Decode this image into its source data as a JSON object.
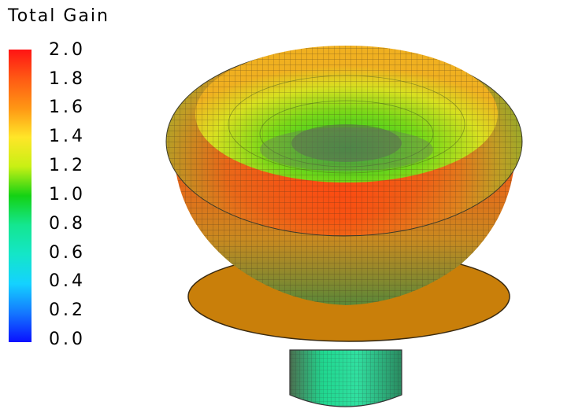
{
  "legend": {
    "title": "Total Gain",
    "ticks": [
      "2.0",
      "1.8",
      "1.6",
      "1.4",
      "1.2",
      "1.0",
      "0.8",
      "0.6",
      "0.4",
      "0.2",
      "0.0"
    ]
  },
  "colors": {
    "ground_plane": "#c97f0a",
    "gain_high": "#ff3c10",
    "gain_mid": "#b8f018",
    "gain_low": "#20d880"
  }
}
